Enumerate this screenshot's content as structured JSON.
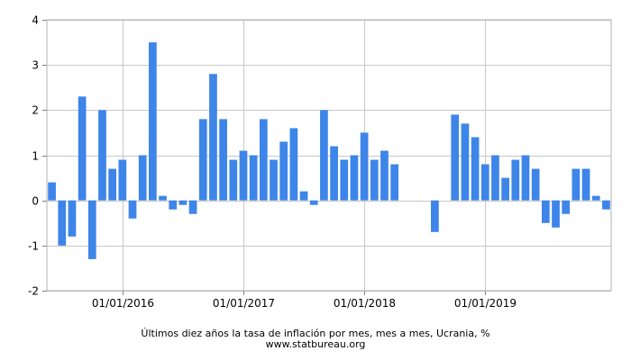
{
  "chart_data": {
    "type": "bar",
    "caption": "Últimos diez años la tasa de inflación por mes, mes a mes, Ucrania, %",
    "source": "www.statbureau.org",
    "bar_color": "#3d85e8",
    "grid": true,
    "ylim": [
      -2,
      4
    ],
    "yticks": [
      "-2",
      "-1",
      "0",
      "1",
      "2",
      "3",
      "4"
    ],
    "xticks": [
      {
        "label": "01/01/2016",
        "index": 7.5
      },
      {
        "label": "01/01/2017",
        "index": 19.5
      },
      {
        "label": "01/01/2018",
        "index": 31.5
      },
      {
        "label": "01/01/2019",
        "index": 43.5
      }
    ],
    "values": [
      0.4,
      -1.0,
      -0.8,
      2.3,
      -1.3,
      2.0,
      0.7,
      0.9,
      -0.4,
      1.0,
      3.5,
      0.1,
      -0.2,
      -0.1,
      -0.3,
      1.8,
      2.8,
      1.8,
      0.9,
      1.1,
      1.0,
      1.8,
      0.9,
      1.3,
      1.6,
      0.2,
      -0.1,
      2.0,
      1.2,
      0.9,
      1.0,
      1.5,
      0.9,
      1.1,
      0.8,
      0.0,
      0.0,
      0.0,
      -0.7,
      0.0,
      1.9,
      1.7,
      1.4,
      0.8,
      1.0,
      0.5,
      0.9,
      1.0,
      0.7,
      -0.5,
      -0.6,
      -0.3,
      0.7,
      0.7,
      0.1,
      -0.2
    ]
  }
}
